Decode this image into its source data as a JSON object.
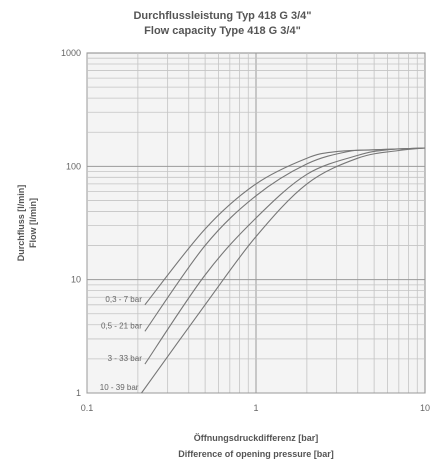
{
  "chart_data": {
    "type": "line",
    "title": "Durchflussleistung Typ 418 G 3/4\"",
    "subtitle": "Flow capacity Type 418 G 3/4\"",
    "xlabel": "Öffnungsdruckdifferenz [bar]",
    "xlabel2": "Difference of opening pressure [bar]",
    "ylabel": "Durchfluss [l/min]",
    "ylabel2": "Flow [l/min]",
    "xscale": "log",
    "yscale": "log",
    "xlim": [
      0.1,
      10
    ],
    "ylim": [
      1,
      1000
    ],
    "grid": true,
    "x_ticks": [
      "0.1",
      "1",
      "10"
    ],
    "y_ticks": [
      "1",
      "10",
      "100",
      "1000"
    ],
    "series": [
      {
        "name": "0,3 - 7 bar",
        "x": [
          0.22,
          0.5,
          1,
          2,
          3,
          5,
          10
        ],
        "y": [
          6,
          28,
          70,
          118,
          135,
          140,
          145
        ]
      },
      {
        "name": "0,5 - 21 bar",
        "x": [
          0.22,
          0.5,
          1,
          2,
          3.5,
          5,
          10
        ],
        "y": [
          3.5,
          20,
          55,
          105,
          135,
          140,
          145
        ]
      },
      {
        "name": "3 - 33 bar",
        "x": [
          0.22,
          0.5,
          1,
          2,
          4,
          6,
          10
        ],
        "y": [
          1.8,
          11,
          35,
          85,
          125,
          140,
          145
        ]
      },
      {
        "name": "10 - 39 bar",
        "x": [
          0.21,
          0.5,
          1,
          2,
          4,
          7,
          10
        ],
        "y": [
          1,
          6,
          24,
          70,
          118,
          138,
          145
        ]
      }
    ]
  }
}
